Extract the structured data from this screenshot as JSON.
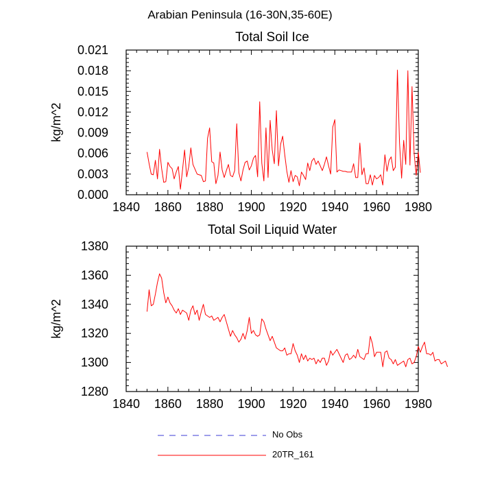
{
  "main_title": "Arabian Peninsula (16-30N,35-60E)",
  "legend": [
    {
      "label": "No Obs",
      "color": "#3b3bd6",
      "style": "dashed"
    },
    {
      "label": "20TR_161",
      "color": "#ff0000",
      "style": "solid"
    }
  ],
  "chart_data": [
    {
      "type": "line",
      "title": "Total Soil Ice",
      "xlabel": "",
      "ylabel": "kg/m^2",
      "xlim": [
        1840,
        1980
      ],
      "ylim": [
        0.0,
        0.021
      ],
      "xticks": [
        1840,
        1860,
        1880,
        1900,
        1920,
        1940,
        1960,
        1980
      ],
      "xticklabels": [
        "1840",
        "1860",
        "1880",
        "1900",
        "1920",
        "1940",
        "1960",
        "1980"
      ],
      "yticks": [
        0.0,
        0.003,
        0.006,
        0.009,
        0.012,
        0.015,
        0.018,
        0.021
      ],
      "yticklabels": [
        "0.000",
        "0.003",
        "0.006",
        "0.009",
        "0.012",
        "0.015",
        "0.018",
        "0.021"
      ],
      "x_start": 1850,
      "x_step": 1,
      "series": [
        {
          "name": "20TR_161",
          "color": "#ff0000",
          "values": [
            0.0062,
            0.0045,
            0.003,
            0.0029,
            0.005,
            0.0023,
            0.0066,
            0.0038,
            0.0018,
            0.0019,
            0.0047,
            0.0041,
            0.0038,
            0.0023,
            0.0033,
            0.0041,
            0.0008,
            0.0036,
            0.0065,
            0.0026,
            0.0041,
            0.0068,
            0.0044,
            0.0037,
            0.003,
            0.0029,
            0.0028,
            0.0019,
            0.002,
            0.0082,
            0.0097,
            0.0048,
            0.0046,
            0.0016,
            0.0028,
            0.0062,
            0.0036,
            0.0025,
            0.0035,
            0.0044,
            0.0028,
            0.0026,
            0.0035,
            0.0103,
            0.0032,
            0.002,
            0.0036,
            0.0047,
            0.0049,
            0.0036,
            0.0042,
            0.0053,
            0.0057,
            0.0026,
            0.0135,
            0.0046,
            0.002,
            0.0097,
            0.0025,
            0.0108,
            0.0065,
            0.0045,
            0.0122,
            0.0042,
            0.0073,
            0.0085,
            0.0058,
            0.0034,
            0.0018,
            0.0035,
            0.0019,
            0.0028,
            0.0026,
            0.0013,
            0.0033,
            0.0028,
            0.0022,
            0.0046,
            0.0035,
            0.0049,
            0.0053,
            0.0044,
            0.0049,
            0.0042,
            0.0035,
            0.0044,
            0.0055,
            0.0042,
            0.003,
            0.0098,
            0.0109,
            0.0033,
            0.0036,
            0.0035,
            0.0034,
            0.0034,
            0.0033,
            0.0033,
            0.0033,
            0.0045,
            0.0025,
            0.0025,
            0.0075,
            0.0029,
            0.0039,
            0.0016,
            0.0016,
            0.0029,
            0.0014,
            0.0028,
            0.0023,
            0.0025,
            0.0029,
            0.0014,
            0.0058,
            0.0034,
            0.005,
            0.0055,
            0.0035,
            0.004,
            0.0181,
            0.0076,
            0.0024,
            0.0079,
            0.0044,
            0.018,
            0.0043,
            0.0157,
            0.006,
            0.0028,
            0.0062,
            0.0032
          ]
        }
      ]
    },
    {
      "type": "line",
      "title": "Total Soil Liquid Water",
      "xlabel": "",
      "ylabel": "kg/m^2",
      "xlim": [
        1840,
        1980
      ],
      "ylim": [
        1280,
        1380
      ],
      "xticks": [
        1840,
        1860,
        1880,
        1900,
        1920,
        1940,
        1960,
        1980
      ],
      "xticklabels": [
        "1840",
        "1860",
        "1880",
        "1900",
        "1920",
        "1940",
        "1960",
        "1980"
      ],
      "yticks": [
        1280,
        1300,
        1320,
        1340,
        1360,
        1380
      ],
      "yticklabels": [
        "1280",
        "1300",
        "1320",
        "1340",
        "1360",
        "1380"
      ],
      "x_start": 1850,
      "x_step": 1,
      "series": [
        {
          "name": "20TR_161",
          "color": "#ff0000",
          "values": [
            1335,
            1350,
            1339,
            1340,
            1347,
            1355,
            1361,
            1358,
            1348,
            1341,
            1345,
            1341,
            1339,
            1336,
            1334,
            1337,
            1333,
            1336,
            1335,
            1334,
            1329,
            1336,
            1339,
            1333,
            1336,
            1329,
            1335,
            1340,
            1333,
            1332,
            1331,
            1332,
            1329,
            1330,
            1331,
            1328,
            1331,
            1333,
            1328,
            1323,
            1318,
            1322,
            1319,
            1317,
            1314,
            1316,
            1320,
            1316,
            1322,
            1331,
            1320,
            1322,
            1319,
            1318,
            1319,
            1330,
            1328,
            1323,
            1319,
            1315,
            1318,
            1314,
            1310,
            1309,
            1308,
            1308,
            1310,
            1305,
            1306,
            1306,
            1313,
            1308,
            1305,
            1300,
            1306,
            1302,
            1305,
            1301,
            1303,
            1302,
            1303,
            1299,
            1302,
            1300,
            1303,
            1303,
            1298,
            1301,
            1308,
            1305,
            1307,
            1309,
            1306,
            1303,
            1300,
            1305,
            1306,
            1302,
            1303,
            1305,
            1303,
            1309,
            1304,
            1303,
            1302,
            1306,
            1306,
            1318,
            1313,
            1304,
            1307,
            1307,
            1307,
            1297,
            1307,
            1308,
            1303,
            1302,
            1299,
            1302,
            1298,
            1299,
            1300,
            1301,
            1297,
            1302,
            1303,
            1299,
            1300,
            1304,
            1311,
            1307,
            1311,
            1314,
            1306,
            1306,
            1305,
            1307,
            1301,
            1302,
            1302,
            1299,
            1300,
            1301,
            1297
          ]
        }
      ]
    }
  ]
}
